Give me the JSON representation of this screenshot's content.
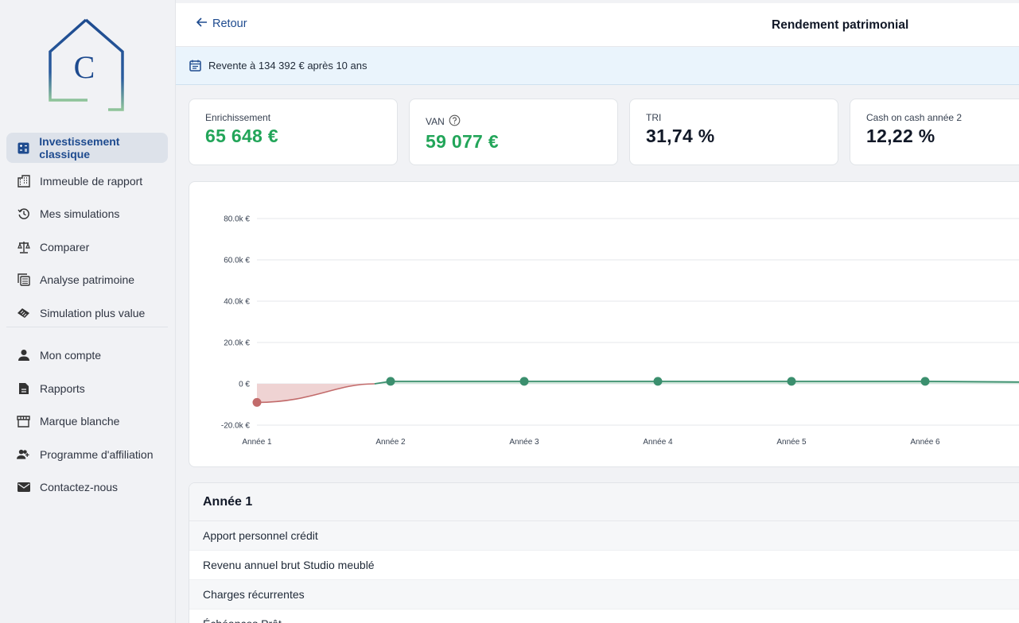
{
  "sidebar": {
    "logo_letter": "C",
    "nav_primary": [
      {
        "label": "Investissement classique",
        "icon": "calculator-icon",
        "active": true
      },
      {
        "label": "Immeuble de rapport",
        "icon": "building-icon"
      },
      {
        "label": "Mes simulations",
        "icon": "history-icon"
      },
      {
        "label": "Comparer",
        "icon": "scale-icon"
      },
      {
        "label": "Analyse patrimoine",
        "icon": "grid-calc-icon"
      },
      {
        "label": "Simulation plus value",
        "icon": "handshake-icon"
      }
    ],
    "nav_secondary": [
      {
        "label": "Mon compte",
        "icon": "person-icon"
      },
      {
        "label": "Rapports",
        "icon": "document-icon"
      },
      {
        "label": "Marque blanche",
        "icon": "storefront-icon"
      },
      {
        "label": "Programme d'affiliation",
        "icon": "add-user-icon"
      },
      {
        "label": "Contactez-nous",
        "icon": "mail-icon"
      }
    ]
  },
  "topbar": {
    "back_label": "Retour",
    "title": "Rendement patrimonial"
  },
  "banner": {
    "text": "Revente à 134 392 € après 10 ans"
  },
  "kpis": [
    {
      "label": "Enrichissement",
      "value": "65 648 €",
      "color": "#22a559"
    },
    {
      "label": "VAN",
      "value": "59 077 €",
      "color": "#22a559",
      "help": true
    },
    {
      "label": "TRI",
      "value": "31,74 %",
      "color": "#111827"
    },
    {
      "label": "Cash on cash année 2",
      "value": "12,22 %",
      "color": "#111827"
    }
  ],
  "chart_data": {
    "type": "area",
    "x": [
      "Année 1",
      "Année 2",
      "Année 3",
      "Année 4",
      "Année 5",
      "Année 6"
    ],
    "series": [
      {
        "values": [
          -9000,
          1200,
          1200,
          1200,
          1200,
          1200
        ]
      }
    ],
    "ylim": [
      -20000,
      80000
    ],
    "yticks": [
      "-20.0k €",
      "0 €",
      "20.0k €",
      "40.0k €",
      "60.0k €",
      "80.0k €"
    ],
    "ytick_values": [
      -20000,
      0,
      20000,
      40000,
      60000,
      80000
    ],
    "colors": {
      "negative": "#c26b6b",
      "negative_fill": "#efd3d3",
      "positive": "#3b8f6e",
      "grid": "#e5e7eb"
    }
  },
  "table": {
    "header": "Année 1",
    "rows": [
      "Apport personnel crédit",
      "Revenu annuel brut Studio meublé",
      "Charges récurrentes",
      "Échéances Prêt"
    ]
  }
}
